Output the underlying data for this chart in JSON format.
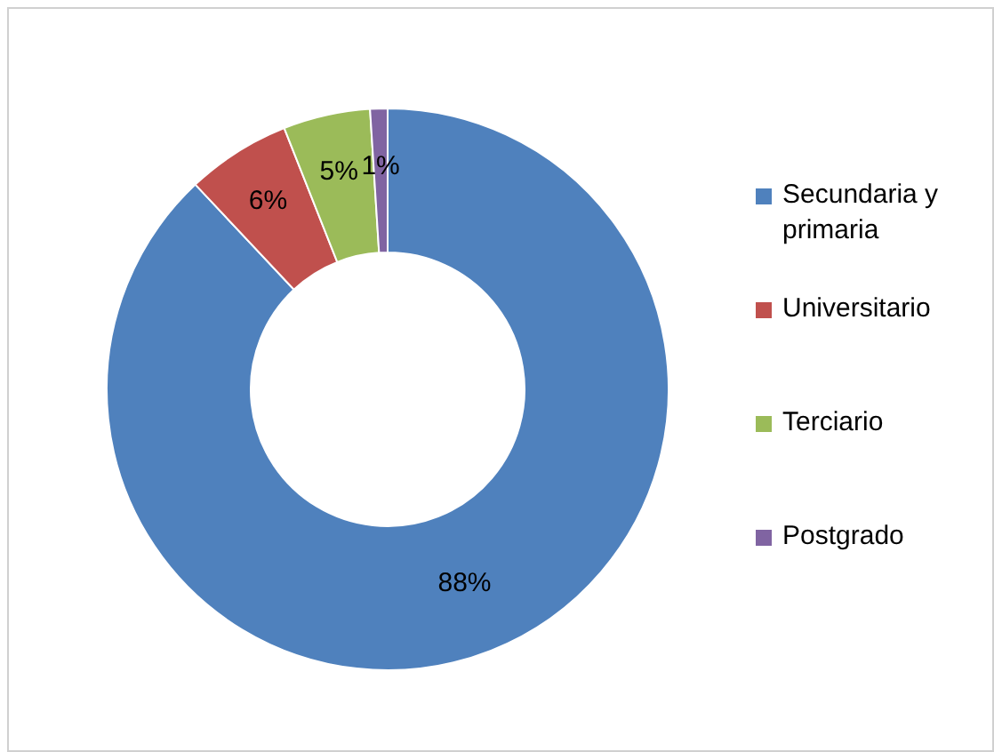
{
  "chart_data": {
    "type": "donut",
    "categories": [
      "Secundaria y primaria",
      "Universitario",
      "Terciario",
      "Postgrado"
    ],
    "values": [
      88,
      6,
      5,
      1
    ],
    "colors": [
      "#4f81bd",
      "#c0504d",
      "#9bbb59",
      "#8064a2"
    ],
    "value_labels": [
      "88%",
      "6%",
      "5%",
      "1%"
    ],
    "legend": "right"
  }
}
